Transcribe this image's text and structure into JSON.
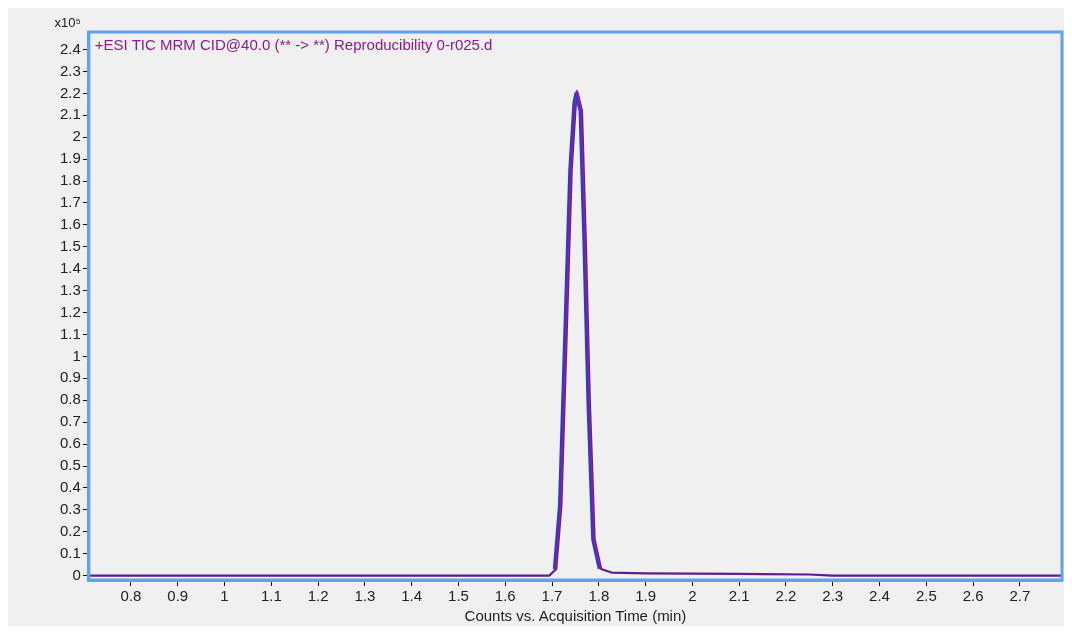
{
  "chart_data": {
    "type": "line",
    "title": "+ESI TIC MRM CID@40.0 (** -> **) Reproducibility 0-r025.d",
    "xlabel": "Counts vs. Acquisition Time (min)",
    "ylabel": "x10⁵",
    "series": [
      {
        "color": "#2a3fbf",
        "x": [
          1.704,
          1.715,
          1.726,
          1.737,
          1.746,
          1.75,
          1.759,
          1.767,
          1.776,
          1.786,
          1.8
        ],
        "values": [
          0.03,
          0.32,
          1.08,
          1.85,
          2.16,
          2.2,
          2.12,
          1.54,
          0.78,
          0.165,
          0.03
        ]
      },
      {
        "color": "#a0189c",
        "x": [
          1.707,
          1.718,
          1.729,
          1.74,
          1.749,
          1.753,
          1.762,
          1.77,
          1.779,
          1.789,
          1.803
        ],
        "values": [
          0.03,
          0.32,
          1.08,
          1.85,
          2.16,
          2.21,
          2.12,
          1.54,
          0.78,
          0.165,
          0.03
        ]
      },
      {
        "color": "#5a1f8c",
        "x": [
          0.71,
          1.694,
          1.709,
          1.72,
          1.731,
          1.742,
          1.751,
          1.755,
          1.764,
          1.772,
          1.781,
          1.791,
          1.805,
          1.827,
          1.9,
          2.1,
          2.25,
          2.3,
          2.79
        ],
        "values": [
          0,
          0,
          0.03,
          0.32,
          1.08,
          1.85,
          2.16,
          2.2,
          2.12,
          1.54,
          0.78,
          0.165,
          0.03,
          0.014,
          0.01,
          0.008,
          0.005,
          0,
          0
        ]
      }
    ],
    "xlim": [
      0.71,
      2.79
    ],
    "xticks": [
      0.8,
      0.9,
      1,
      1.1,
      1.2,
      1.3,
      1.4,
      1.5,
      1.6,
      1.7,
      1.8,
      1.9,
      2,
      2.1,
      2.2,
      2.3,
      2.4,
      2.5,
      2.6,
      2.7
    ],
    "ylim": [
      -0.02,
      2.48
    ],
    "yticks": [
      0,
      0.1,
      0.2,
      0.3,
      0.4,
      0.5,
      0.6,
      0.7,
      0.8,
      0.9,
      1,
      1.1,
      1.2,
      1.3,
      1.4,
      1.5,
      1.6,
      1.7,
      1.8,
      1.9,
      2,
      2.1,
      2.2,
      2.3,
      2.4
    ],
    "grid": false,
    "legend": false,
    "marker": "none",
    "line_style": "solid"
  }
}
